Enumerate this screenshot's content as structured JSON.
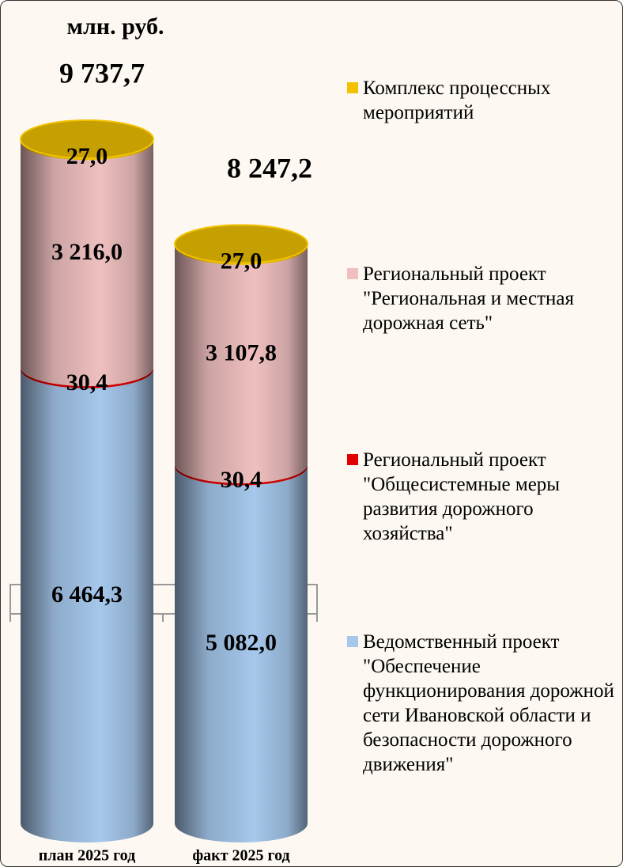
{
  "chart_data": {
    "type": "stacked_cylinder",
    "unit_label": "млн. руб.",
    "categories": [
      "план 2025 год",
      "факт 2025 год"
    ],
    "totals": [
      9737.7,
      8247.2
    ],
    "total_labels": [
      "9 737,7",
      "8 247,2"
    ],
    "series": [
      {
        "name": "Ведомственный проект \"Обеспечение функционирования дорожной сети Ивановской области и безопасности дорожного движения\"",
        "color": "#a6c8ec",
        "values": [
          6464.3,
          5082.0
        ],
        "value_labels": [
          "6 464,3",
          "5 082,0"
        ]
      },
      {
        "name": "Региональный проект \"Общесистемные меры развития дорожного хозяйства\"",
        "color": "#e00000",
        "values": [
          30.4,
          30.4
        ],
        "value_labels": [
          "30,4",
          "30,4"
        ]
      },
      {
        "name": "Региональный проект \"Региональная и местная дорожная сеть\"",
        "color": "#f0c0c0",
        "values": [
          3216.0,
          3107.8
        ],
        "value_labels": [
          "3 216,0",
          "3 107,8"
        ]
      },
      {
        "name": "Комплекс процессных мероприятий",
        "color": "#f2c200",
        "values": [
          27.0,
          27.0
        ],
        "value_labels": [
          "27,0",
          "27,0"
        ]
      }
    ],
    "legend": "right"
  }
}
